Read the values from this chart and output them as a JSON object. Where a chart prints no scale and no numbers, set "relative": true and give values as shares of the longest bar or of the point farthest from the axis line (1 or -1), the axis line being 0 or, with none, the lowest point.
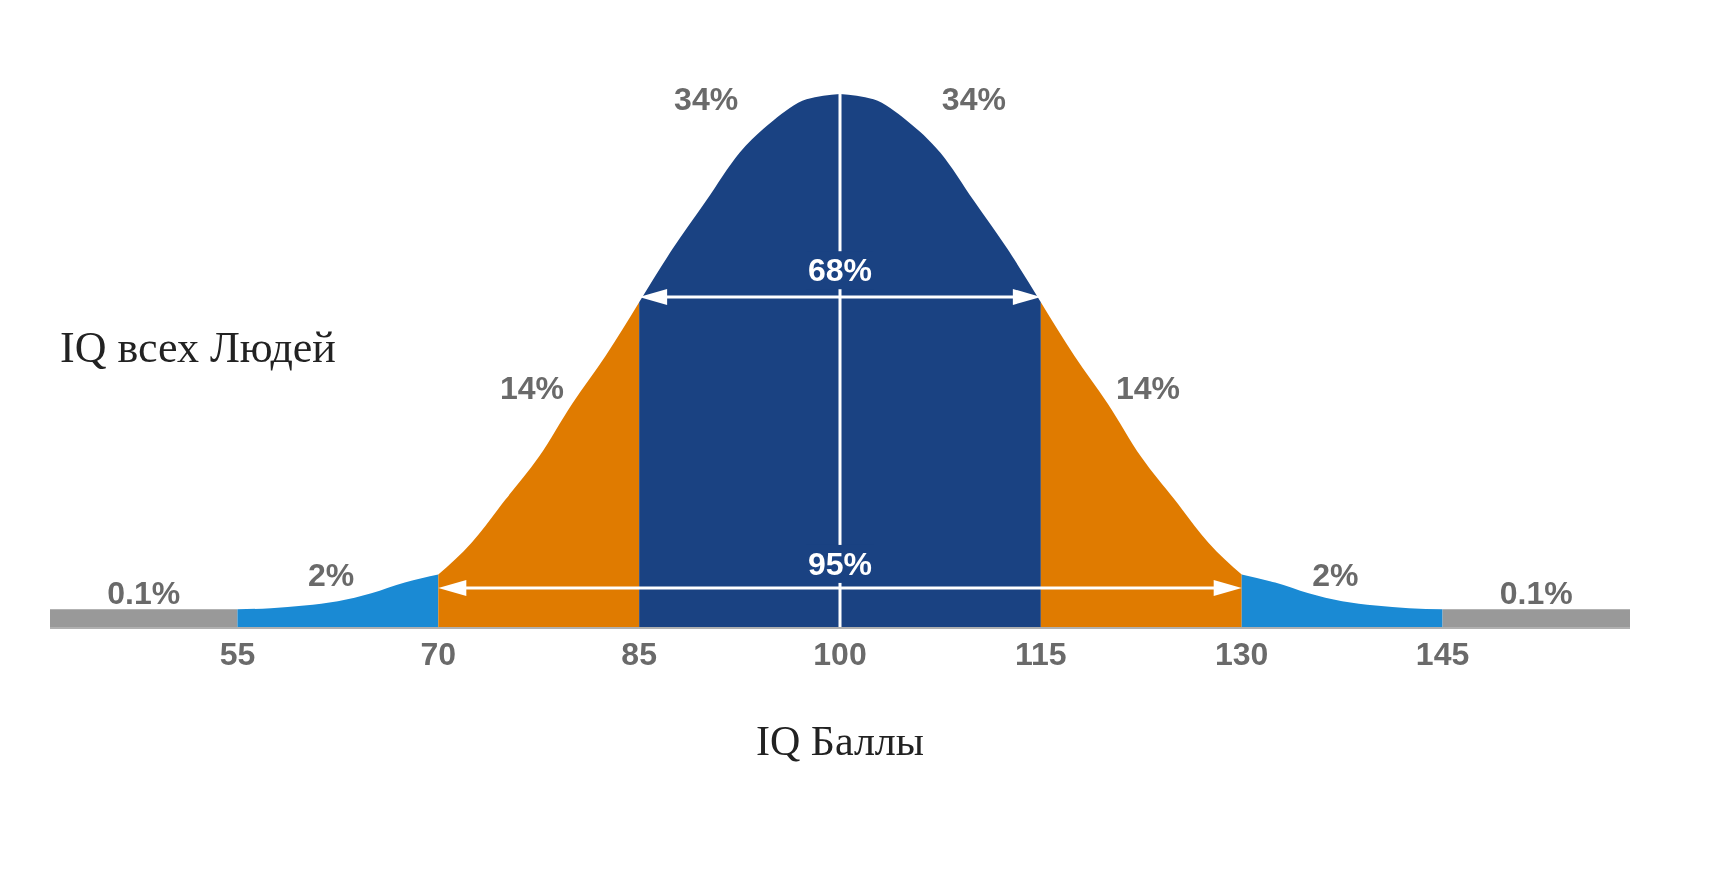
{
  "chart_data": {
    "type": "area",
    "relative": true,
    "xlabel": "IQ Баллы",
    "ylabel": "IQ всех Людей",
    "xlim": [
      41,
      159
    ],
    "xticks": [
      55,
      70,
      85,
      100,
      115,
      130,
      145
    ],
    "series": [
      {
        "color": "#999999",
        "x": [
          41,
          55
        ],
        "values": [
          0.035,
          0.035
        ]
      },
      {
        "color": "#1a8ad4",
        "x": [
          55,
          57.5,
          60,
          62.5,
          65,
          67.5,
          70
        ],
        "values": [
          0.035,
          0.037,
          0.042,
          0.05,
          0.065,
          0.085,
          0.1
        ]
      },
      {
        "color": "#e07b00",
        "x": [
          70,
          72.5,
          75,
          77.5,
          80,
          82.5,
          85
        ],
        "values": [
          0.1,
          0.16,
          0.24,
          0.32,
          0.42,
          0.51,
          0.61
        ]
      },
      {
        "color": "#1a4282",
        "x": [
          85,
          87.5,
          90,
          92.5,
          95,
          97.5,
          100
        ],
        "values": [
          0.61,
          0.71,
          0.8,
          0.89,
          0.95,
          0.99,
          1
        ]
      },
      {
        "color": "#1a4282",
        "x": [
          100,
          102.5,
          105,
          107.5,
          110,
          112.5,
          115
        ],
        "values": [
          1,
          0.99,
          0.95,
          0.89,
          0.8,
          0.71,
          0.61
        ]
      },
      {
        "color": "#e07b00",
        "x": [
          115,
          117.5,
          120,
          122.5,
          125,
          127.5,
          130
        ],
        "values": [
          0.61,
          0.51,
          0.42,
          0.32,
          0.24,
          0.16,
          0.1
        ]
      },
      {
        "color": "#1a8ad4",
        "x": [
          130,
          132.5,
          135,
          137.5,
          140,
          142.5,
          145
        ],
        "values": [
          0.1,
          0.085,
          0.065,
          0.05,
          0.042,
          0.037,
          0.035
        ]
      },
      {
        "color": "#999999",
        "x": [
          145,
          159
        ],
        "values": [
          0.035,
          0.035
        ]
      }
    ],
    "ref_lines": [
      {
        "axis": "x",
        "value": 100,
        "color": "#ffffff"
      }
    ],
    "annotations": [
      "34%",
      "34%",
      "68%",
      "14%",
      "14%",
      "95%",
      "2%",
      "2%",
      "0.1%",
      "0.1%"
    ]
  }
}
